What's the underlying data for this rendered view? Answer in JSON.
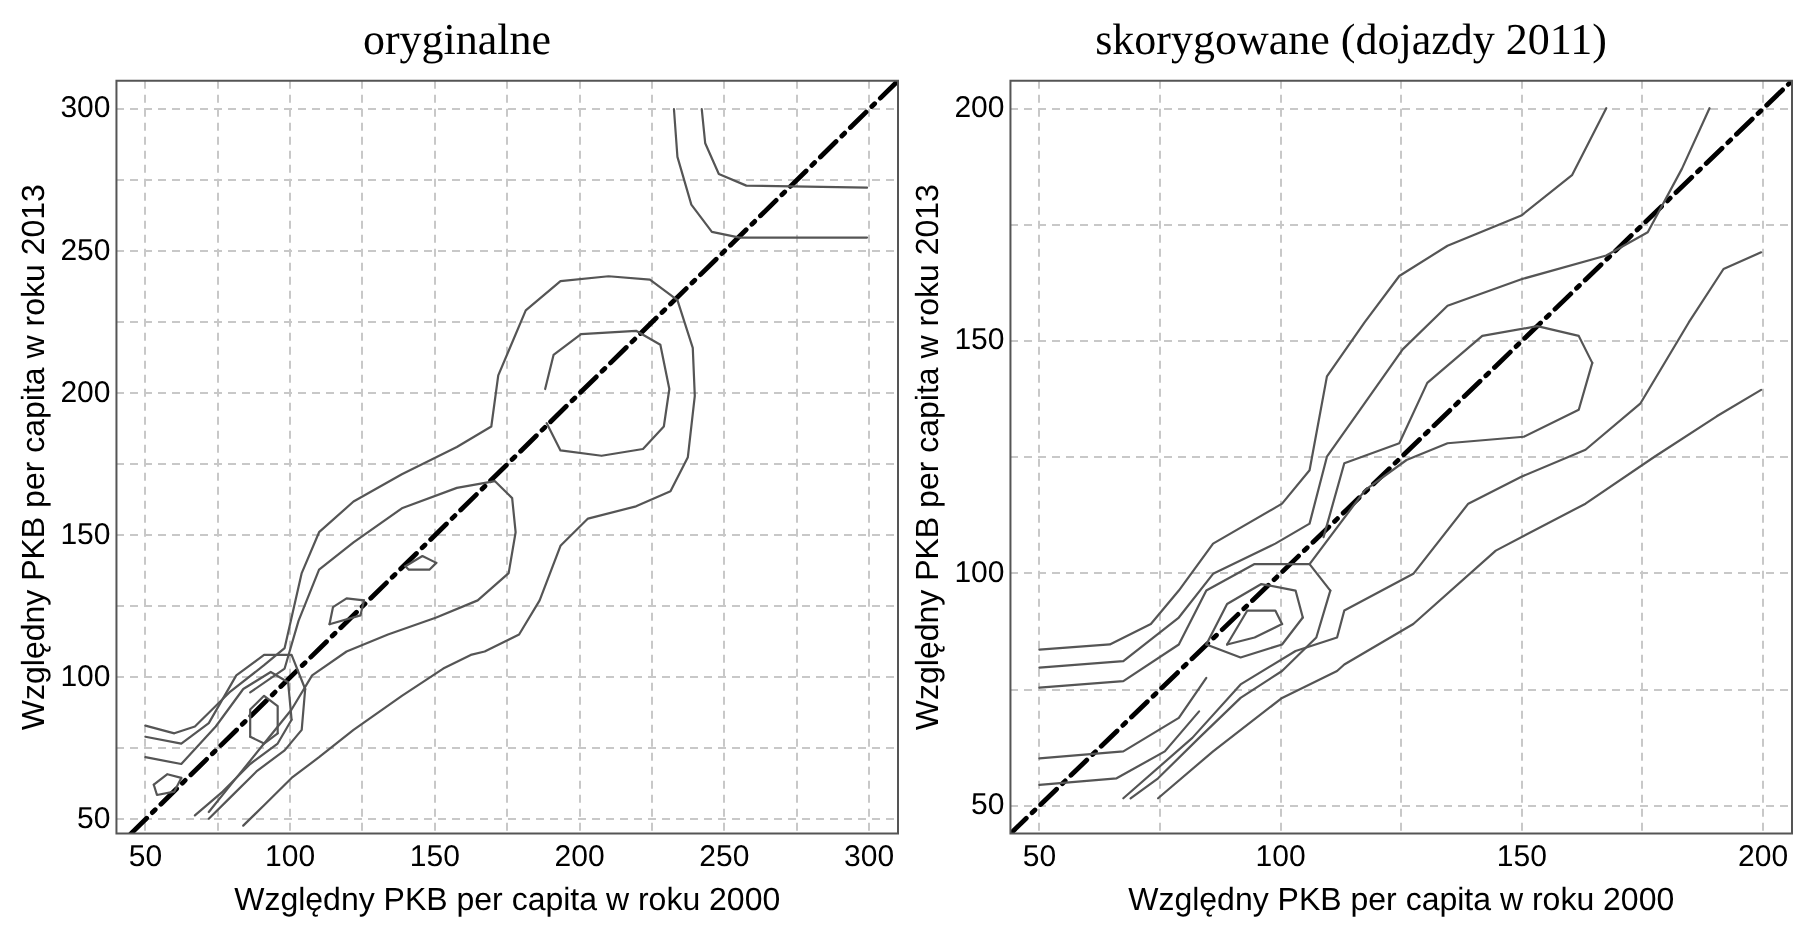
{
  "chart_data": [
    {
      "type": "line",
      "title": "oryginalne",
      "xlabel": "Względny PKB per capita w roku 2000",
      "ylabel": "Względny PKB per capita w roku 2013",
      "xlim": [
        40,
        310
      ],
      "ylim": [
        45,
        310
      ],
      "xticks": [
        50,
        {
          "value": 75,
          "label": null
        },
        100,
        {
          "value": 125,
          "label": null
        },
        150,
        {
          "value": 175,
          "label": null
        },
        200,
        {
          "value": 225,
          "label": null
        },
        250,
        {
          "value": 275,
          "label": null
        },
        300
      ],
      "yticks": [
        50,
        {
          "value": 75,
          "label": null
        },
        100,
        {
          "value": 125,
          "label": null
        },
        150,
        {
          "value": 175,
          "label": null
        },
        200,
        {
          "value": 225,
          "label": null
        },
        250,
        {
          "value": 275,
          "label": null
        },
        300
      ],
      "grid": true,
      "marker": "none",
      "series": [
        {
          "color": "#555555",
          "line_style": "solid",
          "x": [
            50,
            60,
            67.1,
            79,
            91,
            98.1,
            104,
            110,
            121.9,
            138.6,
            157.6,
            169.5,
            171.9,
            181.4,
            193.4,
            210,
            224.3,
            233.8,
            239.1,
            239.8,
            237.4,
            231.4,
            219.5,
            202.9,
            193.4,
            186.2,
            179.1,
            167.2,
            162.4,
            152.9,
            138.6,
            121.9,
            110,
            100.5,
            91,
            83.8
          ],
          "values": [
            83,
            80.3,
            82.7,
            94.7,
            104.3,
            110.3,
            136.7,
            151.1,
            161.9,
            171.5,
            181.1,
            188.3,
            206.3,
            229.2,
            239.5,
            241.2,
            240,
            232.8,
            216,
            199.1,
            177.5,
            165.5,
            160.2,
            155.9,
            146.3,
            127.1,
            115.1,
            109.1,
            107.9,
            103.1,
            93.5,
            81.5,
            71.9,
            64.6,
            55,
            47.8
          ]
        },
        {
          "color": "#555555",
          "line_style": "solid",
          "x": [
            86.2,
            98.1,
            102.9,
            110,
            121.9,
            138.6,
            157.6,
            170.7,
            176.7,
            177.9,
            175.5,
            164.8,
            150.5,
            133.8,
            119.5,
            107.6,
            100.5,
            91,
            81.4,
            71.9
          ],
          "values": [
            94.7,
            103.1,
            119.9,
            137.9,
            147.5,
            159.5,
            166.7,
            169.1,
            163.1,
            151.1,
            136.7,
            127.1,
            121.1,
            115.1,
            109.1,
            100.7,
            88.7,
            76.7,
            64.6,
            52.6
          ]
        },
        {
          "color": "#555555",
          "line_style": "solid",
          "x": [
            188.1,
            191,
            200.5,
            219.5,
            227.9,
            231,
            229.1,
            221.9,
            207.6,
            193.4,
            188.6
          ],
          "values": [
            201.5,
            213.5,
            220.8,
            222,
            217.1,
            201.5,
            188.3,
            180.4,
            178,
            179.9,
            189.5
          ]
        },
        {
          "color": "#555555",
          "line_style": "solid",
          "x": [
            232.6,
            233.8,
            238.6,
            245.7,
            255.3,
            299.3
          ],
          "values": [
            300,
            283.2,
            266.4,
            256.8,
            254.8,
            254.8
          ]
        },
        {
          "color": "#555555",
          "line_style": "solid",
          "x": [
            242.2,
            243.4,
            248.1,
            257.6,
            299.3
          ],
          "values": [
            300,
            288,
            277.2,
            273.1,
            272.4
          ]
        },
        {
          "color": "#555555",
          "line_style": "solid",
          "x": [
            113.6,
            114.8,
            119.5,
            125.5
          ],
          "values": [
            118.7,
            124.7,
            127.8,
            127.1
          ]
        },
        {
          "color": "#555555",
          "line_style": "solid",
          "x": [
            113.6,
            124.3,
            125.5
          ],
          "values": [
            118.7,
            121.8,
            127.1
          ]
        },
        {
          "color": "#555555",
          "line_style": "solid",
          "x": [
            139.8,
            145.7,
            150.5
          ],
          "values": [
            139.1,
            142.7,
            140.3
          ]
        },
        {
          "color": "#555555",
          "line_style": "solid",
          "x": [
            139.8,
            141,
            148.1,
            150.5
          ],
          "values": [
            139.1,
            137.9,
            137.9,
            140.3
          ]
        },
        {
          "color": "#555555",
          "line_style": "solid",
          "x": [
            50,
            62.4,
            71.9,
            81.4,
            91,
            100.5,
            105.2
          ],
          "values": [
            79.1,
            76.7,
            83.9,
            100.7,
            107.9,
            107.9,
            95.9
          ]
        },
        {
          "color": "#555555",
          "line_style": "solid",
          "x": [
            71.9,
            79,
            88.6,
            98.1,
            104,
            105.2
          ],
          "values": [
            50.2,
            57.4,
            67.1,
            74.3,
            81.5,
            95.9
          ]
        },
        {
          "color": "#555555",
          "line_style": "solid",
          "x": [
            50,
            62.4,
            74.3,
            83.8,
            93.3,
            99.3,
            100.5
          ],
          "values": [
            71.9,
            69.5,
            82.7,
            95.9,
            101.9,
            98.3,
            85.1
          ]
        },
        {
          "color": "#555555",
          "line_style": "solid",
          "x": [
            67.1,
            76.7,
            86.2,
            95.7,
            100.5
          ],
          "values": [
            51.4,
            59.8,
            69.5,
            76.7,
            85.1
          ]
        },
        {
          "color": "#555555",
          "line_style": "solid",
          "x": [
            86.2,
            86.2,
            91,
            95.7,
            95.7
          ],
          "values": [
            79.1,
            88.7,
            93.5,
            89.9,
            80.3
          ]
        },
        {
          "color": "#555555",
          "line_style": "solid",
          "x": [
            86.2,
            91,
            95.7
          ],
          "values": [
            79.1,
            76.7,
            80.3
          ]
        },
        {
          "color": "#555555",
          "line_style": "solid",
          "x": [
            52.9,
            57.6,
            62.4
          ],
          "values": [
            62.2,
            65.9,
            64.6
          ]
        },
        {
          "color": "#555555",
          "line_style": "solid",
          "x": [
            52.9,
            54,
            60,
            62.4
          ],
          "values": [
            62.2,
            58.6,
            59.8,
            64.6
          ]
        },
        {
          "color": "#000000",
          "line_style": "dashed",
          "x": [
            45,
            310
          ],
          "values": [
            45,
            310
          ]
        }
      ]
    },
    {
      "type": "line",
      "title": "skorygowane (dojazdy 2011)",
      "xlabel": "Względny PKB per capita w roku 2000",
      "ylabel": "Względny PKB per capita w roku 2013",
      "xlim": [
        44,
        206
      ],
      "ylim": [
        44,
        206
      ],
      "xticks": [
        50,
        {
          "value": 75,
          "label": null
        },
        100,
        {
          "value": 125,
          "label": null
        },
        150,
        {
          "value": 175,
          "label": null
        },
        200
      ],
      "yticks": [
        50,
        {
          "value": 75,
          "label": null
        },
        100,
        {
          "value": 125,
          "label": null
        },
        150,
        {
          "value": 175,
          "label": null
        },
        200
      ],
      "grid": true,
      "marker": "none",
      "series": [
        {
          "color": "#555555",
          "line_style": "solid",
          "x": [
            50,
            64.6,
            73.1,
            78.9,
            86,
            100.3,
            106,
            109.6,
            117.4,
            124.6,
            134.6,
            149.9,
            160.4,
            167.5
          ],
          "values": [
            83.6,
            84.7,
            89.1,
            96.3,
            106.4,
            115,
            122.2,
            142.4,
            154,
            164,
            170.5,
            177,
            185.7,
            200.1
          ]
        },
        {
          "color": "#555555",
          "line_style": "solid",
          "x": [
            50,
            67.4,
            78.9,
            86,
            98.9,
            106,
            109.6,
            117.4,
            125.3,
            134.6,
            149.9,
            167.5,
            176.1,
            183.2,
            188.9
          ],
          "values": [
            79.7,
            81.1,
            90.5,
            99.9,
            106.4,
            110.7,
            125.1,
            136.6,
            148.2,
            157.6,
            163.3,
            168.4,
            173.4,
            187.1,
            200.1
          ]
        },
        {
          "color": "#555555",
          "line_style": "solid",
          "x": [
            108.9,
            113.2,
            124.6,
            130.4,
            141.8,
            153.2,
            161.8,
            164.6
          ],
          "values": [
            107.8,
            123.7,
            128,
            141,
            151.1,
            153.2,
            151.1,
            145.3
          ]
        },
        {
          "color": "#555555",
          "line_style": "solid",
          "x": [
            106,
            117.5,
            126.1,
            134.6,
            150.4,
            161.8,
            164.6
          ],
          "values": [
            102,
            117.9,
            124.4,
            128,
            129.4,
            135.2,
            145.3
          ]
        },
        {
          "color": "#555555",
          "line_style": "solid",
          "x": [
            67.4,
            81.7,
            91.7,
            103.1,
            111.7,
            113.2,
            127.5,
            138.9,
            149.9,
            163.2,
            174.6,
            184.6,
            191.8,
            199.6
          ],
          "values": [
            51.6,
            64.6,
            76.1,
            83.3,
            86.2,
            92,
            99.9,
            115,
            120.8,
            126.6,
            136.6,
            154,
            165.5,
            169.1
          ]
        },
        {
          "color": "#555555",
          "line_style": "solid",
          "x": [
            74.6,
            86,
            100.3,
            111.7,
            113.2,
            127.5,
            144.6,
            163.2,
            177.5,
            190.4,
            199.6
          ],
          "values": [
            51.6,
            61.7,
            73.2,
            79,
            80.4,
            89.1,
            104.9,
            115,
            125.1,
            133.8,
            139.5
          ]
        },
        {
          "color": "#555555",
          "line_style": "solid",
          "x": [
            88.9,
            93.1,
            98.9,
            100.3
          ],
          "values": [
            84.7,
            92,
            92,
            89.1
          ]
        },
        {
          "color": "#555555",
          "line_style": "solid",
          "x": [
            88.9,
            94.6,
            100.3
          ],
          "values": [
            84.7,
            86.2,
            89.1
          ]
        },
        {
          "color": "#555555",
          "line_style": "solid",
          "x": [
            84.6,
            88.9,
            96,
            103.1,
            104.6
          ],
          "values": [
            84.7,
            93.4,
            97.7,
            96.3,
            90.5
          ]
        },
        {
          "color": "#555555",
          "line_style": "solid",
          "x": [
            84.6,
            91.7,
            100.3,
            104.6
          ],
          "values": [
            84.7,
            81.9,
            84.7,
            90.5
          ]
        },
        {
          "color": "#555555",
          "line_style": "solid",
          "x": [
            50,
            67.4,
            78.9,
            84.6,
            94.6,
            106,
            110.3
          ],
          "values": [
            75.4,
            76.8,
            84.7,
            96.3,
            102,
            102,
            96.3
          ]
        },
        {
          "color": "#555555",
          "line_style": "solid",
          "x": [
            68.9,
            74.6,
            83.1,
            91.7,
            100.3,
            107.4,
            110.3
          ],
          "values": [
            51.6,
            55.9,
            64.6,
            73.2,
            79,
            86.2,
            96.3
          ]
        },
        {
          "color": "#555555",
          "line_style": "solid",
          "x": [
            50,
            67.4,
            78.9,
            84.6
          ],
          "values": [
            60.2,
            61.7,
            68.9,
            77.5
          ]
        },
        {
          "color": "#555555",
          "line_style": "solid",
          "x": [
            50,
            66,
            76,
            83.1
          ],
          "values": [
            54.5,
            55.9,
            61.7,
            70.3
          ]
        },
        {
          "color": "#000000",
          "line_style": "dashed",
          "x": [
            44,
            206
          ],
          "values": [
            44,
            206
          ]
        }
      ]
    }
  ]
}
